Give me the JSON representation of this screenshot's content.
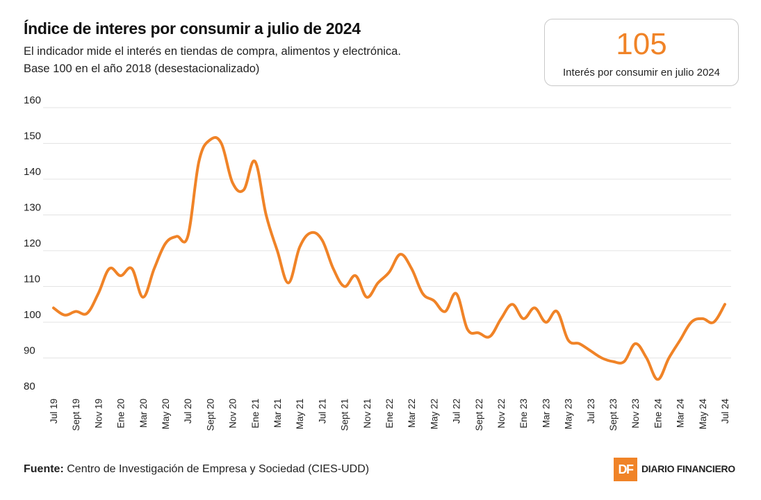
{
  "header": {
    "title": "Índice de interes por consumir a julio de 2024",
    "subtitle_line1": "El indicador mide el interés en tiendas de compra, alimentos y electrónica.",
    "subtitle_line2": "Base 100 en el año 2018 (desestacionalizado)"
  },
  "kpi": {
    "value": "105",
    "label": "Interés por consumir en julio 2024"
  },
  "footer": {
    "source_label": "Fuente:",
    "source_text": "Centro de Investigación de Empresa y Sociedad (CIES-UDD)"
  },
  "brand": {
    "badge": "DF",
    "name": "DIARIO FINANCIERO"
  },
  "colors": {
    "line": "#f08327",
    "grid": "#e3e3e3",
    "text": "#222222"
  },
  "chart_data": {
    "type": "line",
    "title": "Índice de interes por consumir a julio de 2024",
    "xlabel": "",
    "ylabel": "",
    "ylim": [
      80,
      160
    ],
    "yticks": [
      80,
      90,
      100,
      110,
      120,
      130,
      140,
      150,
      160
    ],
    "grid": true,
    "xtick_labels": [
      "Jul 19",
      "Sept 19",
      "Nov 19",
      "Ene 20",
      "Mar 20",
      "May 20",
      "Jul 20",
      "Sept 20",
      "Nov 20",
      "Ene 21",
      "Mar 21",
      "May 21",
      "Jul 21",
      "Sept 21",
      "Nov 21",
      "Ene 22",
      "Mar 22",
      "May 22",
      "Jul 22",
      "Sept 22",
      "Nov 22",
      "Ene 23",
      "Mar 23",
      "May 23",
      "Jul 23",
      "Sept 23",
      "Nov 23",
      "Ene 24",
      "Mar 24",
      "May 24",
      "Jul 24"
    ],
    "series": [
      {
        "name": "Índice de interés por consumir",
        "x": [
          0,
          0.5,
          1,
          1.5,
          2,
          2.5,
          3,
          3.5,
          4,
          4.5,
          5,
          5.5,
          6,
          6.5,
          7,
          7.5,
          8,
          8.5,
          9,
          9.5,
          10,
          10.5,
          11,
          11.5,
          12,
          12.5,
          13,
          13.5,
          14,
          14.5,
          15,
          15.5,
          16,
          16.5,
          17,
          17.5,
          18,
          18.5,
          19,
          19.5,
          20,
          20.5,
          21,
          21.5,
          22,
          22.5,
          23,
          23.5,
          24,
          24.5,
          25,
          25.5,
          26,
          26.5,
          27,
          27.5,
          28,
          28.5,
          29,
          29.5,
          30
        ],
        "values": [
          104,
          102,
          103,
          102.5,
          108,
          115,
          113,
          115,
          107,
          115,
          122,
          124,
          124,
          145,
          151,
          150,
          139,
          137,
          145,
          130,
          120,
          111,
          121,
          125,
          123,
          115,
          110,
          113,
          107,
          111,
          114,
          119,
          115,
          108,
          106,
          103,
          108,
          98,
          97,
          96,
          101,
          105,
          101,
          104,
          100,
          103,
          95,
          94,
          92,
          90,
          89,
          89,
          94,
          90,
          84,
          90,
          95,
          100,
          101,
          100,
          105
        ]
      }
    ]
  }
}
